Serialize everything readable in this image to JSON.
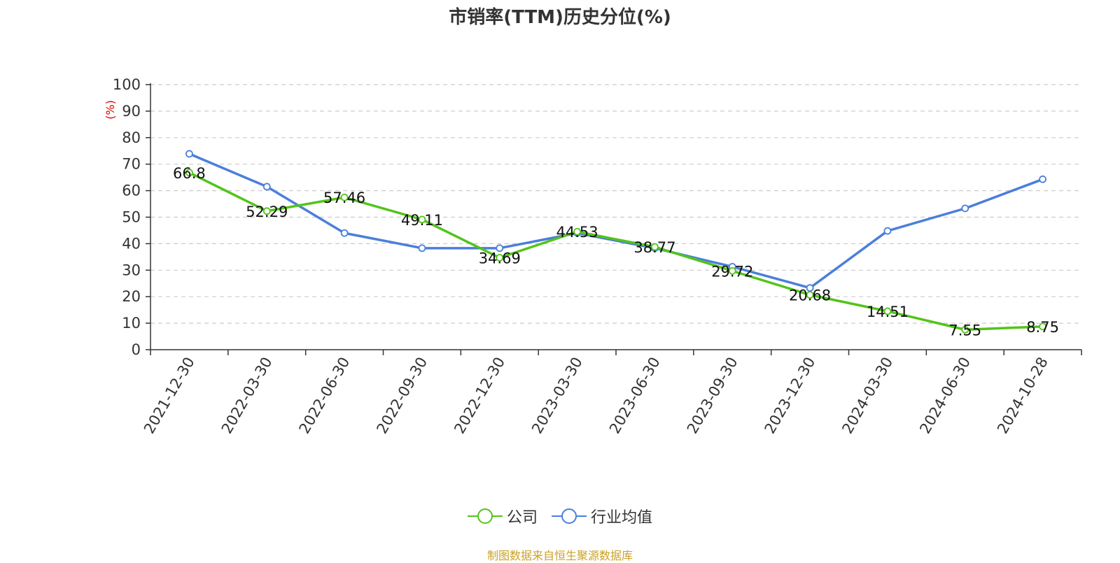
{
  "chart_data": {
    "type": "line",
    "title": "市销率(TTM)历史分位(%)",
    "ylabel": "(%)",
    "xlabel": "",
    "ylim": [
      0,
      100
    ],
    "yticks": [
      0,
      10,
      20,
      30,
      40,
      50,
      60,
      70,
      80,
      90,
      100
    ],
    "grid": true,
    "legend_position": "bottom",
    "categories": [
      "2021-12-30",
      "2022-03-30",
      "2022-06-30",
      "2022-09-30",
      "2022-12-30",
      "2023-03-30",
      "2023-06-30",
      "2023-09-30",
      "2023-12-30",
      "2024-03-30",
      "2024-06-30",
      "2024-10-28"
    ],
    "series": [
      {
        "name": "公司",
        "color": "#52c41a",
        "values": [
          66.8,
          52.29,
          57.46,
          49.11,
          34.69,
          44.53,
          38.77,
          29.72,
          20.68,
          14.51,
          7.55,
          8.75
        ],
        "labels": [
          "66.8",
          "52.29",
          "57.46",
          "49.11",
          "34.69",
          "44.53",
          "38.77",
          "29.72",
          "20.68",
          "14.51",
          "7.55",
          "8.75"
        ],
        "show_labels": true
      },
      {
        "name": "行业均值",
        "color": "#4a7fdb",
        "values": [
          73.9,
          61.5,
          44.0,
          38.3,
          38.3,
          44.0,
          38.3,
          31.3,
          23.3,
          44.8,
          53.3,
          64.3
        ],
        "show_labels": false
      }
    ]
  },
  "footer": {
    "source": "制图数据来自恒生聚源数据库"
  }
}
